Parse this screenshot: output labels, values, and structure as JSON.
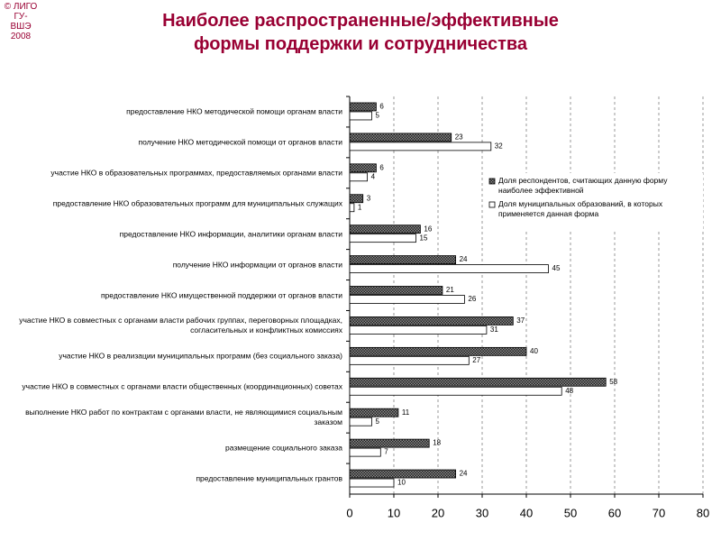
{
  "corner": [
    "© ЛИГО",
    "ГУ-ВШЭ",
    "2008"
  ],
  "chart_data": {
    "type": "bar",
    "orientation": "horizontal",
    "title": "Наиболее распространенные/эффективные формы поддержки и сотрудничества",
    "categories": [
      "предоставление НКО методической помощи органам власти",
      "получение НКО методической помощи от органов власти",
      "участие НКО в образовательных программах, предоставляемых органами власти",
      "предоставление НКО образовательных программ для муниципальных служащих",
      "предоставление НКО информации, аналитики органам власти",
      "получение НКО информации от органов власти",
      "предоставление НКО имущественной поддержки от органов власти",
      "участие НКО в совместных с органами власти рабочих группах, переговорных площадках, согласительных и конфликтных комиссиях",
      "участие НКО в реализации муниципальных программ (без социального заказа)",
      "участие НКО в совместных с органами власти общественных (координационных) советах",
      "выполнение НКО работ по контрактам с органами власти, не являющимися социальным заказом",
      "размещение социального заказа",
      "предоставление муниципальных грантов"
    ],
    "series": [
      {
        "name": "Доля респондентов, считающих данную форму наиболее эффективной",
        "color": "#555555",
        "pattern": "hatched",
        "values": [
          6,
          23,
          6,
          3,
          16,
          24,
          21,
          37,
          40,
          58,
          11,
          18,
          24
        ]
      },
      {
        "name": "Доля муниципальных образований, в которых применяется данная форма",
        "color": "#ffffff",
        "pattern": "solid",
        "values": [
          5,
          32,
          4,
          1,
          15,
          45,
          26,
          31,
          27,
          48,
          5,
          7,
          10
        ]
      }
    ],
    "xlim": [
      0,
      80
    ],
    "xticks": [
      0,
      10,
      20,
      30,
      40,
      50,
      60,
      70,
      80
    ],
    "grid": true,
    "legend": "right"
  }
}
